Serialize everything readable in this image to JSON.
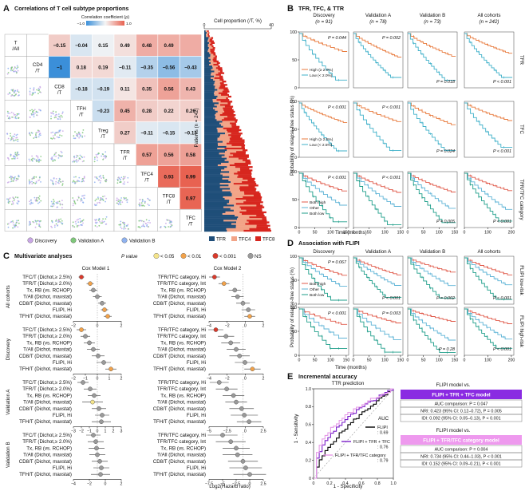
{
  "panels": {
    "A": {
      "label": "A",
      "title": "Correlations of T cell subtype proportions",
      "colorbar": {
        "title": "Correlation coefficient (ρ)",
        "min_label": "−1.0",
        "max_label": "1.0",
        "colors": [
          "#3b8fd9",
          "#f5f5f5",
          "#e8614f"
        ]
      },
      "diag_labels": [
        [
          "T",
          "/All"
        ],
        [
          "CD4",
          "/T"
        ],
        [
          "CD8",
          "/T"
        ],
        [
          "TFH",
          "/T"
        ],
        [
          "Treg",
          "/T"
        ],
        [
          "TFR",
          "/T"
        ],
        [
          "TFC4",
          "/T"
        ],
        [
          "TFC8",
          "/T"
        ],
        [
          "TFC",
          "/T"
        ]
      ],
      "matrix": [
        [
          null,
          0.28,
          -0.15,
          -0.04,
          0.15,
          0.49,
          0.48,
          0.49
        ],
        [
          -1,
          0.18,
          0.19,
          -0.11,
          -0.35,
          -0.56,
          -0.43
        ],
        [
          -0.18,
          -0.19,
          0.11,
          0.35,
          0.56,
          0.43
        ],
        [
          -0.23,
          0.45,
          0.28,
          0.22,
          0.26
        ],
        [
          0.27,
          -0.11,
          -0.15,
          -0.13
        ],
        [
          0.57,
          0.56,
          0.58
        ],
        [
          0.93,
          0.99
        ],
        [
          0.97
        ]
      ],
      "cell_labels": [
        [
          "0.28",
          "−0.15",
          "−0.04",
          "0.15",
          "0.49",
          "0.48",
          "0.49"
        ],
        [
          "−1",
          "0.18",
          "0.19",
          "−0.11",
          "−0.35",
          "−0.56",
          "−0.43"
        ],
        [
          "−0.18",
          "−0.19",
          "0.11",
          "0.35",
          "0.56",
          "0.43"
        ],
        [
          "−0.23",
          "0.45",
          "0.28",
          "0.22",
          "0.26"
        ],
        [
          "0.27",
          "−0.11",
          "−0.15",
          "−0.13"
        ],
        [
          "0.57",
          "0.56",
          "0.58"
        ],
        [
          "0.93",
          "0.99"
        ],
        [
          "0.97"
        ]
      ],
      "legend": [
        {
          "label": "Discovery",
          "color": "#c9a7e6"
        },
        {
          "label": "Validation A",
          "color": "#7fc77a"
        },
        {
          "label": "Validation B",
          "color": "#8fb2ef"
        }
      ],
      "bar_chart": {
        "title": "Cell proportion (/T, %)",
        "axis_min": "0",
        "axis_max": "40",
        "ylabel": "Patients (n = 242)",
        "legend": [
          {
            "label": "TFR",
            "color": "#1f4e79"
          },
          {
            "label": "TFC4",
            "color": "#f2a487"
          },
          {
            "label": "TFC8",
            "color": "#d7261e"
          }
        ]
      }
    },
    "B": {
      "label": "B",
      "title": "TFR, TFC, & TTR",
      "cohorts": [
        "Discovery",
        "Validation A",
        "Validation B",
        "All cohorts"
      ],
      "cohort_n": [
        "(n = 91)",
        "(n = 78)",
        "(n = 73)",
        "(n = 242)"
      ],
      "rows": [
        "TFR",
        "TFC",
        "TFR/TFC category"
      ],
      "pvalues": [
        [
          "P = 0.044",
          "P = 0.002",
          "P = 0.018",
          "P < 0.001"
        ],
        [
          "P < 0.001",
          "P < 0.001",
          "P = 0.024",
          "P < 0.001"
        ],
        [
          "P < 0.001",
          "P < 0.001",
          "P = 0.005",
          "P < 0.001"
        ]
      ],
      "legends": [
        [
          "High (≥ 2.0%)",
          "Low (< 2.0%)"
        ],
        [
          "High (≥ 2.5%)",
          "Low (< 2.5%)"
        ],
        [
          "Both high",
          "Other",
          "Both low"
        ]
      ],
      "ylabel": "Probability of relapse-free status (%)",
      "xlabel": "Time (months)",
      "y_ticks": [
        "0",
        "50",
        "100"
      ],
      "x_ticks_150": [
        "0",
        "50",
        "100",
        "150"
      ],
      "x_ticks_200": [
        "0",
        "100",
        "200"
      ]
    },
    "C": {
      "label": "C",
      "title": "Multivariate analyses",
      "pvalue_legend": {
        "title": "P value",
        "items": [
          {
            "label": "< 0.05",
            "color": "#f4e48a"
          },
          {
            "label": "< 0.01",
            "color": "#f2a24a"
          },
          {
            "label": "< 0.001",
            "color": "#d93a2b"
          },
          {
            "label": "NS",
            "color": "#9a9a9a"
          }
        ]
      },
      "model1_title": "Cox Model 1",
      "model2_title": "Cox Model 2",
      "model1_labels": [
        "TFC/T (Dichot,≥ 2.5%)",
        "TFR/T (Dichot,≥ 2.0%)",
        "Tx, RB (vs. RCHOP)",
        "T/All (Dichot, maxstat)",
        "CD8/T (Dichot, maxstat)",
        "FLIPI, Hi",
        "TFH/T (Dichot, maxstat)"
      ],
      "model2_labels": [
        "TFR/TFC category, Hi",
        "TFR/TFC category, Int",
        "Tx, RB (vs. RCHOP)",
        "T/All (Dichot, maxstat)",
        "CD8/T (Dichot, maxstat)",
        "FLIPI, Hi",
        "TFH/T (Dichot, maxstat)"
      ],
      "groups": [
        "All cohorts",
        "Discovery",
        "Validation A",
        "Validation B"
      ],
      "forest": {
        "m1": [
          [
            [
              -2.0,
              0.35,
              "p001"
            ],
            [
              -0.9,
              0.45,
              "p01"
            ],
            [
              -0.5,
              0.5,
              "ns"
            ],
            [
              0.0,
              0.55,
              "ns"
            ],
            [
              0.6,
              0.5,
              "ns"
            ],
            [
              0.9,
              0.45,
              "p01"
            ],
            [
              1.3,
              0.5,
              "p01"
            ]
          ],
          [
            [
              -2.0,
              0.6,
              "p01"
            ],
            [
              -1.5,
              0.6,
              "ns"
            ],
            [
              -1.0,
              0.7,
              "ns"
            ],
            [
              -0.5,
              0.8,
              "ns"
            ],
            [
              0.1,
              0.8,
              "ns"
            ],
            [
              0.8,
              0.9,
              "ns"
            ],
            [
              1.7,
              0.7,
              "p01"
            ]
          ],
          [
            [
              -1.8,
              0.7,
              "ns"
            ],
            [
              -0.9,
              0.8,
              "ns"
            ],
            [
              -0.4,
              0.8,
              "ns"
            ],
            [
              -0.6,
              1.3,
              "p05"
            ],
            [
              0.2,
              0.9,
              "ns"
            ],
            [
              0.6,
              0.9,
              "ns"
            ],
            [
              0.5,
              1.2,
              "ns"
            ]
          ],
          [
            [
              -0.5,
              0.9,
              "ns"
            ],
            [
              -0.2,
              1.0,
              "ns"
            ],
            [
              -0.1,
              1.0,
              "ns"
            ],
            [
              0.0,
              1.0,
              "ns"
            ],
            [
              0.3,
              1.0,
              "ns"
            ],
            [
              0.5,
              1.0,
              "ns"
            ],
            [
              0.4,
              1.2,
              "ns"
            ]
          ]
        ],
        "m2": [
          [
            [
              -4.2,
              0.8,
              "p001"
            ],
            [
              -2.8,
              0.8,
              "p01"
            ],
            [
              -1.2,
              0.9,
              "ns"
            ],
            [
              -0.8,
              0.9,
              "ns"
            ],
            [
              0.0,
              1.0,
              "ns"
            ],
            [
              0.8,
              1.0,
              "ns"
            ],
            [
              1.0,
              0.8,
              "p01"
            ]
          ],
          [
            [
              -4.0,
              1.1,
              "p001"
            ],
            [
              -2.5,
              1.2,
              "ns"
            ],
            [
              -1.8,
              1.4,
              "ns"
            ],
            [
              -1.0,
              1.4,
              "ns"
            ],
            [
              -0.5,
              1.5,
              "ns"
            ],
            [
              0.3,
              1.5,
              "ns"
            ],
            [
              1.4,
              1.2,
              "p01"
            ]
          ],
          [
            [
              -3.5,
              1.4,
              "ns"
            ],
            [
              -2.4,
              1.6,
              "ns"
            ],
            [
              -1.4,
              1.6,
              "ns"
            ],
            [
              -1.0,
              1.6,
              "ns"
            ],
            [
              -0.2,
              1.8,
              "ns"
            ],
            [
              0.2,
              2.0,
              "ns"
            ],
            [
              0.9,
              1.8,
              "ns"
            ]
          ],
          [
            [
              -3.0,
              2.2,
              "ns"
            ],
            [
              -1.8,
              2.2,
              "ns"
            ],
            [
              -1.0,
              2.0,
              "ns"
            ],
            [
              -0.8,
              2.2,
              "ns"
            ],
            [
              0.0,
              2.2,
              "ns"
            ],
            [
              0.4,
              2.4,
              "ns"
            ],
            [
              1.0,
              2.4,
              "ns"
            ]
          ]
        ]
      },
      "m1_xticks": [
        "−2",
        "0",
        "2"
      ],
      "m1_xticks_b": [
        "−2",
        "−1",
        "0",
        "1",
        "2"
      ],
      "m1_xticks_va": [
        "−3",
        "−2",
        "−1",
        "0",
        "1",
        "2",
        "3"
      ],
      "m1_xticks_vb": [
        "−4",
        "−2",
        "0",
        "2"
      ],
      "m2_xticks": [
        "−4",
        "−2",
        "0",
        "2"
      ],
      "m2_xticks_va": [
        "−5",
        "−2.5",
        "0",
        "2.5"
      ],
      "m2_xticks_vb": [
        "−7.5",
        "−5",
        "−2.5",
        "0",
        "2.5"
      ],
      "xlabel": "Log2(Hazard ratio)"
    },
    "D": {
      "label": "D",
      "title": "Association with FLIPI",
      "cohorts": [
        "Discovery",
        "Validation A",
        "Validation B",
        "All cohorts"
      ],
      "rows": [
        "FLIPI low-risk",
        "FLIPI high-risk"
      ],
      "pvalues": [
        [
          "P = 0.067",
          "P < 0.001",
          "P = 0.002",
          "P < 0.001"
        ],
        [
          "P < 0.001",
          "P = 0.003",
          "P = 0.28",
          "P < 0.001"
        ]
      ],
      "legend": [
        "Both high",
        "Other",
        "Both low"
      ],
      "ylabel": "Probability of relapse-free status (%)",
      "xlabel": "Time (months)"
    },
    "E": {
      "label": "E",
      "title": "Incremental accuracy",
      "roc_title": "TTR prediction",
      "xlabel": "1 - Specificity",
      "ylabel": "1 - Sensitivity",
      "ticks": [
        "0",
        "0.2",
        "0.4",
        "0.6",
        "0.8",
        "1.0"
      ],
      "auc_title": "AUC",
      "auc_items": [
        {
          "label": "FLIPI",
          "value": ": 0.69",
          "color": "#000000"
        },
        {
          "label": "FLIPI + TFR + TFC",
          "value": ": 0.76",
          "color": "#7a1fc9"
        },
        {
          "label": "FLIPI + TFR/TFC category",
          "value": ": 0.79",
          "color": "#e69be8"
        }
      ],
      "box1": {
        "heading": "FLIPI model vs.",
        "title": "FLIPI + TFR + TFC model",
        "color": "#8a2be2",
        "lines": [
          "AUC comparison: P = 0.047",
          "NRI: 0.423 (95% CI: 0.12–0.72), P = 0.005",
          "IDI: 0.092 (95% CI: 0.05–0.13), P < 0.001"
        ]
      },
      "box2": {
        "heading": "FLIPI model vs.",
        "title": "FLIPI + TFR/TFC category model",
        "color": "#ee99ee",
        "lines": [
          "AUC comparison: P = 0.004",
          "NRI: 0.734 (95% CI: 0.44–1.03), P < 0.001",
          "IDI: 0.152 (95% CI: 0.09–0.21), P < 0.001"
        ]
      }
    }
  }
}
